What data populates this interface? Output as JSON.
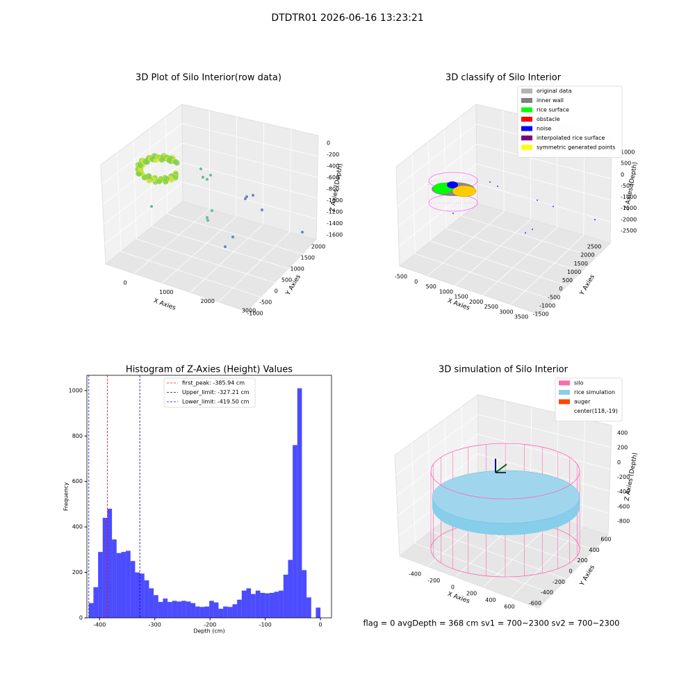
{
  "suptitle": "DTDTR01 2026-06-16 13:23:21",
  "footer": "flag = 0     avgDepth = 368 cm  sv1 = 700~2300  sv2 = 700~2300",
  "chart_data": [
    {
      "type": "scatter3d",
      "title": "3D Plot of Silo Interior(row data)",
      "xlabel": "X Axies",
      "ylabel": "Y Axies",
      "zlabel": "Z Axies (Depth)",
      "xticks": [
        0,
        1000,
        2000,
        3000
      ],
      "yticks": [
        -1000,
        -500,
        0,
        500,
        1000,
        1500,
        2000
      ],
      "zticks": [
        0,
        -200,
        -400,
        -600,
        -800,
        -1000,
        -1200,
        -1400,
        -1600
      ]
    },
    {
      "type": "classify3d",
      "title": "3D classify of Silo Interior",
      "xlabel": "X Axies",
      "ylabel": "Y Axies",
      "zlabel": "Z Axies (Depth)",
      "xticks": [
        -500,
        0,
        500,
        1000,
        1500,
        2000,
        2500,
        3000,
        3500
      ],
      "yticks": [
        -1500,
        -1000,
        -500,
        0,
        500,
        1000,
        1500,
        2000,
        2500
      ],
      "zticks": [
        1000,
        500,
        0,
        -500,
        -1000,
        -1500,
        -2000,
        -2500
      ],
      "legend": [
        {
          "name": "original data",
          "color": "#b3b3b3"
        },
        {
          "name": "inner wall",
          "color": "#808080"
        },
        {
          "name": "rice surface",
          "color": "#00ff00"
        },
        {
          "name": "obstacle",
          "color": "#ff0000"
        },
        {
          "name": "noise",
          "color": "#0000ff"
        },
        {
          "name": "interpolated rice surface",
          "color": "#800080"
        },
        {
          "name": "symmetric generated points",
          "color": "#ffff00"
        }
      ]
    },
    {
      "type": "histogram",
      "title": "Histogram of Z-Axies (Height) Values",
      "xlabel": "Depth (cm)",
      "ylabel": "Frequency",
      "color": "#0000ff",
      "bins": [
        -419.5,
        -411.11,
        -402.72,
        -394.33,
        -385.94,
        -377.55,
        -369.16,
        -360.77,
        -352.38,
        -343.99,
        -335.6,
        -327.21,
        -318.82,
        -310.43,
        -302.04,
        -293.65,
        -285.26,
        -276.87,
        -268.48,
        -260.09,
        -251.7,
        -243.31,
        -234.92,
        -226.53,
        -218.14,
        -209.75,
        -201.36,
        -192.97,
        -184.58,
        -176.19,
        -167.8,
        -159.41,
        -151.02,
        -142.63,
        -134.24,
        -125.85,
        -117.46,
        -109.07,
        -100.68,
        -92.29,
        -83.9,
        -75.51,
        -67.12,
        -58.73,
        -50.34,
        -41.95,
        -33.56,
        -25.17,
        -16.78,
        -8.39,
        0
      ],
      "values": [
        65,
        135,
        290,
        440,
        480,
        345,
        285,
        290,
        295,
        250,
        200,
        195,
        165,
        130,
        100,
        70,
        85,
        70,
        75,
        72,
        75,
        72,
        65,
        50,
        48,
        50,
        75,
        68,
        40,
        50,
        48,
        60,
        80,
        120,
        130,
        105,
        120,
        110,
        108,
        110,
        115,
        120,
        190,
        255,
        760,
        1010,
        210,
        90,
        0,
        45
      ],
      "xlim": [
        -423,
        20
      ],
      "ylim": [
        0,
        1067
      ],
      "xticks": [
        -400,
        -300,
        -200,
        -100,
        0
      ],
      "yticks": [
        0,
        200,
        400,
        600,
        800,
        1000
      ],
      "vlines": [
        {
          "value": -385.94,
          "color": "#ff0000",
          "label": "first_peak: -385.94 cm"
        },
        {
          "value": -327.21,
          "color": "#00008b",
          "label": "Upper_limit: -327.21 cm"
        },
        {
          "value": -419.5,
          "color": "#0000ff",
          "label": "Lower_limit: -419.50 cm"
        }
      ]
    },
    {
      "type": "simulation3d",
      "title": "3D simulation of Silo Interior",
      "xlabel": "X Axies",
      "ylabel": "Y Axies",
      "zlabel": "Z Axies (Depth)",
      "xticks": [
        -400,
        -200,
        0,
        200,
        400,
        600
      ],
      "yticks": [
        -600,
        -400,
        -200,
        0,
        200,
        400,
        600
      ],
      "zticks": [
        400,
        200,
        0,
        -200,
        -400,
        -600,
        -800
      ],
      "legend": [
        {
          "name": "silo",
          "color": "#ff69b4"
        },
        {
          "name": "rice simulation",
          "color": "#87ceeb"
        },
        {
          "name": "auger",
          "color": "#ff4500"
        },
        {
          "name": "center(118,-19)",
          "color": null
        }
      ]
    }
  ]
}
